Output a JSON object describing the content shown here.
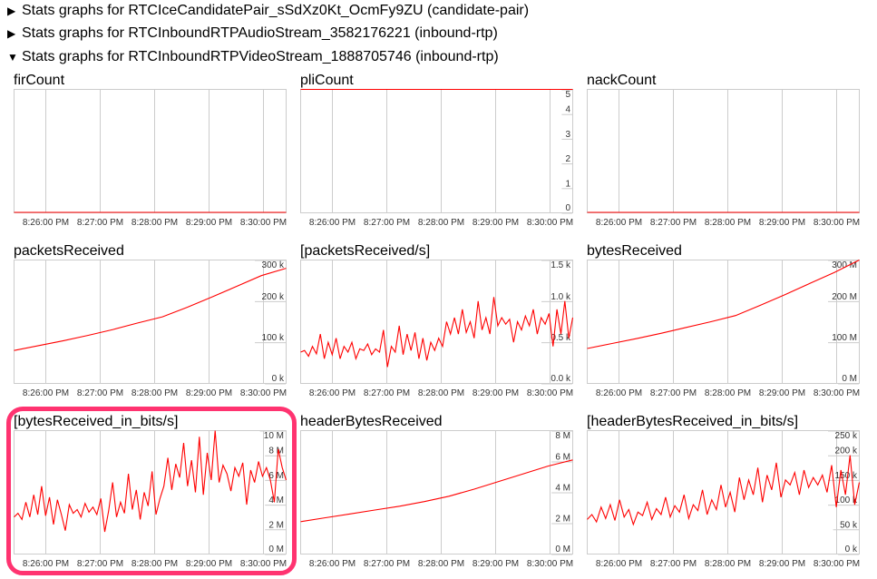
{
  "sections": [
    {
      "expanded": false,
      "label": "Stats graphs for RTCIceCandidatePair_sSdXz0Kt_OcmFy9ZU (candidate-pair)"
    },
    {
      "expanded": false,
      "label": "Stats graphs for RTCInboundRTPAudioStream_3582176221 (inbound-rtp)"
    },
    {
      "expanded": true,
      "label": "Stats graphs for RTCInboundRTPVideoStream_1888705746 (inbound-rtp)"
    }
  ],
  "icons": {
    "collapsed": "triangle-right-icon",
    "expanded": "triangle-down-icon"
  },
  "colors": {
    "line": "#ff0000",
    "grid": "#cccccc",
    "highlight": "#ff3370"
  },
  "time_axis": {
    "start": "8:25:25 PM",
    "end": "8:30:25 PM",
    "ticks": [
      "8:26:00 PM",
      "8:27:00 PM",
      "8:28:00 PM",
      "8:29:00 PM",
      "8:30:00 PM"
    ]
  },
  "chart_data": [
    {
      "type": "line",
      "title": "firCount",
      "ylim": [
        0,
        1
      ],
      "yticks": [],
      "values": [
        0,
        0
      ]
    },
    {
      "type": "line",
      "title": "pliCount",
      "ylim": [
        0,
        5
      ],
      "yticks": [
        {
          "v": 0,
          "label": "0"
        },
        {
          "v": 1,
          "label": "1"
        },
        {
          "v": 2,
          "label": "2"
        },
        {
          "v": 3,
          "label": "3"
        },
        {
          "v": 4,
          "label": "4"
        },
        {
          "v": 5,
          "label": "5"
        }
      ],
      "values": [
        5,
        5
      ]
    },
    {
      "type": "line",
      "title": "nackCount",
      "ylim": [
        0,
        1
      ],
      "yticks": [],
      "values": [
        0,
        0
      ]
    },
    {
      "type": "line",
      "title": "packetsReceived",
      "ylim": [
        0,
        300
      ],
      "yticks": [
        {
          "v": 0,
          "label": "0 k"
        },
        {
          "v": 100,
          "label": "100 k"
        },
        {
          "v": 200,
          "label": "200 k"
        },
        {
          "v": 300,
          "label": "300 k"
        }
      ],
      "values": [
        80,
        92,
        104,
        117,
        131,
        147,
        162,
        185,
        210,
        236,
        262,
        280
      ]
    },
    {
      "type": "line",
      "title": "[packetsReceived/s]",
      "ylim": [
        0,
        1.5
      ],
      "yticks": [
        {
          "v": 0,
          "label": "0.0 k"
        },
        {
          "v": 0.5,
          "label": "0.5 k"
        },
        {
          "v": 1.0,
          "label": "1.0 k"
        },
        {
          "v": 1.5,
          "label": "1.5 k"
        }
      ],
      "values": [
        0.38,
        0.4,
        0.33,
        0.45,
        0.36,
        0.6,
        0.3,
        0.5,
        0.35,
        0.55,
        0.3,
        0.45,
        0.38,
        0.5,
        0.3,
        0.42,
        0.4,
        0.48,
        0.35,
        0.42,
        0.38,
        0.65,
        0.2,
        0.45,
        0.38,
        0.7,
        0.35,
        0.6,
        0.4,
        0.62,
        0.3,
        0.55,
        0.28,
        0.5,
        0.4,
        0.55,
        0.45,
        0.75,
        0.6,
        0.8,
        0.6,
        0.9,
        0.62,
        0.75,
        0.55,
        1.0,
        0.65,
        0.8,
        0.6,
        1.05,
        0.7,
        0.8,
        0.72,
        0.78,
        0.5,
        0.75,
        0.65,
        0.82,
        0.7,
        0.9,
        0.6,
        0.8,
        0.72,
        0.85,
        0.45,
        0.9,
        0.6,
        1.0,
        0.55,
        0.8
      ]
    },
    {
      "type": "line",
      "title": "bytesReceived",
      "ylim": [
        0,
        300
      ],
      "yticks": [
        {
          "v": 0,
          "label": "0 M"
        },
        {
          "v": 100,
          "label": "100 M"
        },
        {
          "v": 200,
          "label": "200 M"
        },
        {
          "v": 300,
          "label": "300 M"
        }
      ],
      "values": [
        85,
        97,
        109,
        122,
        136,
        150,
        165,
        190,
        216,
        243,
        270,
        300
      ]
    },
    {
      "type": "line",
      "title": "[bytesReceived_in_bits/s]",
      "ylim": [
        0,
        10
      ],
      "yticks": [
        {
          "v": 0,
          "label": "0 M"
        },
        {
          "v": 2,
          "label": "2 M"
        },
        {
          "v": 4,
          "label": "4 M"
        },
        {
          "v": 6,
          "label": "6 M"
        },
        {
          "v": 8,
          "label": "8 M"
        },
        {
          "v": 10,
          "label": "10 M"
        }
      ],
      "values": [
        3.0,
        3.3,
        2.8,
        4.2,
        3.0,
        4.8,
        3.2,
        5.5,
        3.1,
        4.6,
        2.4,
        4.4,
        3.2,
        1.9,
        4.0,
        3.3,
        3.6,
        3.0,
        4.1,
        3.4,
        3.8,
        3.2,
        4.5,
        1.8,
        3.5,
        5.8,
        3.0,
        4.2,
        3.3,
        6.5,
        3.6,
        5.2,
        2.8,
        5.0,
        3.9,
        6.7,
        3.2,
        4.5,
        5.5,
        7.8,
        5.2,
        7.3,
        6.2,
        9.0,
        5.5,
        7.6,
        5.0,
        9.5,
        4.8,
        8.2,
        6.0,
        10.0,
        5.8,
        7.2,
        6.5,
        5.1,
        7.0,
        6.3,
        7.4,
        4.0,
        6.8,
        5.8,
        7.5,
        6.3,
        7.0,
        6.0,
        4.2,
        8.5,
        7.0,
        6.0
      ]
    },
    {
      "type": "line",
      "title": "headerBytesReceived",
      "ylim": [
        0,
        8
      ],
      "yticks": [
        {
          "v": 0,
          "label": "0 M"
        },
        {
          "v": 2,
          "label": "2 M"
        },
        {
          "v": 4,
          "label": "4 M"
        },
        {
          "v": 6,
          "label": "6 M"
        },
        {
          "v": 8,
          "label": "8 M"
        }
      ],
      "values": [
        2.1,
        2.35,
        2.6,
        2.85,
        3.1,
        3.4,
        3.75,
        4.2,
        4.7,
        5.2,
        5.7,
        6.1
      ]
    },
    {
      "type": "line",
      "title": "[headerBytesReceived_in_bits/s]",
      "ylim": [
        0,
        250
      ],
      "yticks": [
        {
          "v": 0,
          "label": "0 k"
        },
        {
          "v": 50,
          "label": "50 k"
        },
        {
          "v": 100,
          "label": "100 k"
        },
        {
          "v": 150,
          "label": "150 k"
        },
        {
          "v": 200,
          "label": "200 k"
        },
        {
          "v": 250,
          "label": "250 k"
        }
      ],
      "values": [
        70,
        80,
        65,
        95,
        72,
        100,
        68,
        110,
        75,
        90,
        60,
        85,
        78,
        105,
        70,
        92,
        80,
        115,
        75,
        98,
        85,
        120,
        72,
        100,
        88,
        130,
        80,
        110,
        90,
        140,
        95,
        125,
        85,
        155,
        110,
        150,
        120,
        175,
        105,
        160,
        130,
        185,
        115,
        150,
        140,
        165,
        120,
        170,
        135,
        155,
        140,
        160,
        125,
        180,
        95,
        170,
        120,
        200,
        100,
        145
      ]
    }
  ]
}
